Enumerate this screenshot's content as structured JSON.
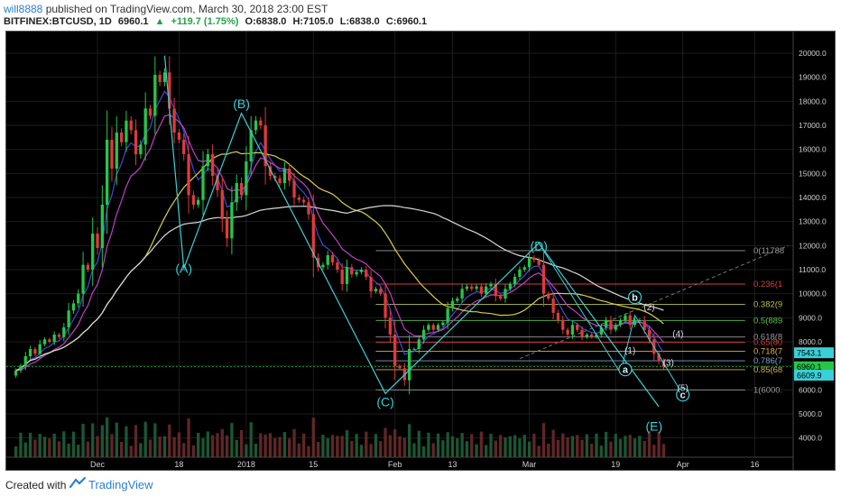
{
  "header": {
    "user": "will8888",
    "published": "published on TradingView.com, March 30, 2018 23:00 EST",
    "symbol": "BITFINEX:BTCUSD, 1D",
    "last": "6960.1",
    "change": "+119.7 (1.75%)",
    "open": "O:6838.0",
    "high": "H:7105.0",
    "low": "L:6838.0",
    "close": "C:6960.1"
  },
  "footer": {
    "created_with": "Created with",
    "brand": "TradingView"
  },
  "colors": {
    "background": "#000000",
    "bull": "#26c64a",
    "bear": "#e03a3a",
    "wave": "#3ad0d8",
    "ema_fast": "#3f4ad8",
    "ema_mid": "#c040c8",
    "ma_slow": "#d8cf4a",
    "ma_long": "#d8d8d8"
  },
  "chart_data": {
    "type": "candlestick",
    "y_ticks": [
      4000,
      5000,
      6000,
      7000,
      8000,
      9000,
      10000,
      11000,
      12000,
      13000,
      14000,
      15000,
      16000,
      17000,
      18000,
      19000,
      20000
    ],
    "y_tick_labels": [
      "4000.0",
      "5000.0",
      "6000.0",
      "7000.0",
      "8000.0",
      "9000.0",
      "10000.0",
      "11000.0",
      "12000.0",
      "13000.0",
      "14000.0",
      "15000.0",
      "16000.0",
      "17000.0",
      "18000.0",
      "19000.0",
      "20000.0"
    ],
    "ylim": [
      3200,
      20900
    ],
    "x_ticks": [
      {
        "label": "Dec",
        "day": 19
      },
      {
        "label": "18",
        "day": 36
      },
      {
        "label": "2018",
        "day": 50
      },
      {
        "label": "15",
        "day": 64
      },
      {
        "label": "Feb",
        "day": 81
      },
      {
        "label": "13",
        "day": 93
      },
      {
        "label": "Mar",
        "day": 109
      },
      {
        "label": "19",
        "day": 127
      },
      {
        "label": "Apr",
        "day": 141
      },
      {
        "label": "16",
        "day": 156
      }
    ],
    "xlim": [
      0,
      164
    ],
    "closes": [
      6800,
      7000,
      7400,
      7700,
      7500,
      7900,
      8100,
      8000,
      8300,
      8200,
      8600,
      9300,
      9600,
      10000,
      11200,
      11000,
      12500,
      11900,
      13700,
      16400,
      15200,
      16700,
      16300,
      17200,
      16800,
      15800,
      16200,
      17700,
      17400,
      19100,
      18800,
      19200,
      17700,
      16700,
      16400,
      15800,
      14100,
      13700,
      13900,
      15300,
      15800,
      14900,
      14300,
      13100,
      12300,
      13800,
      14600,
      14100,
      15500,
      16800,
      17200,
      17000,
      15300,
      14900,
      14800,
      14600,
      15200,
      14700,
      14000,
      13900,
      13800,
      13300,
      11500,
      11100,
      11200,
      11600,
      11300,
      11000,
      10400,
      11100,
      10800,
      10900,
      11000,
      10700,
      10100,
      10200,
      10000,
      9000,
      8300,
      7000,
      6900,
      6400,
      7700,
      7700,
      8100,
      8500,
      8700,
      8500,
      8700,
      8800,
      9400,
      9700,
      9800,
      10200,
      10300,
      10200,
      10300,
      10000,
      10300,
      10400,
      9900,
      9800,
      10200,
      10400,
      10700,
      11000,
      11100,
      11500,
      11400,
      11200,
      10000,
      9800,
      9200,
      8900,
      8500,
      8300,
      8700,
      8500,
      8200,
      8300,
      8200,
      8300,
      8600,
      8900,
      8500,
      8700,
      8900,
      9100,
      8700,
      8900,
      8900,
      8500,
      8100,
      7500,
      7200,
      6960
    ],
    "annotations": [
      {
        "label": "(A)",
        "day": 37,
        "price": 11050
      },
      {
        "label": "(B)",
        "day": 49,
        "price": 17900
      },
      {
        "label": "(C)",
        "day": 79,
        "price": 5500
      },
      {
        "label": "(D)",
        "day": 111,
        "price": 12000
      },
      {
        "label": "(E)",
        "day": 135,
        "price": 4500
      },
      {
        "label": "b",
        "day": 131,
        "price": 9850
      },
      {
        "label": "a",
        "day": 129,
        "price": 6850
      },
      {
        "label": "c",
        "day": 141,
        "price": 5800
      },
      {
        "label": "(1)",
        "day": 130,
        "price": 7700
      },
      {
        "label": "(2)",
        "day": 134,
        "price": 9500
      },
      {
        "label": "(3)",
        "day": 138,
        "price": 7200
      },
      {
        "label": "(4)",
        "day": 140,
        "price": 8400
      },
      {
        "label": "(5)",
        "day": 141,
        "price": 6150
      }
    ],
    "fib_levels": [
      {
        "label": "0(11788",
        "price": 11788
      },
      {
        "label": "0.236(1",
        "price": 10400
      },
      {
        "label": "0.382(9",
        "price": 9560
      },
      {
        "label": "0.5(889",
        "price": 8890
      },
      {
        "label": "0.618(8",
        "price": 8200
      },
      {
        "label": "0.65(80",
        "price": 7980
      },
      {
        "label": "0.718(7",
        "price": 7610
      },
      {
        "label": "0.786(7",
        "price": 7210
      },
      {
        "label": "0.85(68",
        "price": 6840
      },
      {
        "label": "1(6000.",
        "price": 6000
      }
    ],
    "price_labels": [
      {
        "label": "7543.1",
        "price": 7543.1,
        "color": "#3ad0d8"
      },
      {
        "label": "6960.1",
        "price": 6960.1,
        "color": "#26c64a"
      },
      {
        "label": "6609.9",
        "price": 6609.9,
        "color": "#3ad0d8"
      }
    ]
  }
}
